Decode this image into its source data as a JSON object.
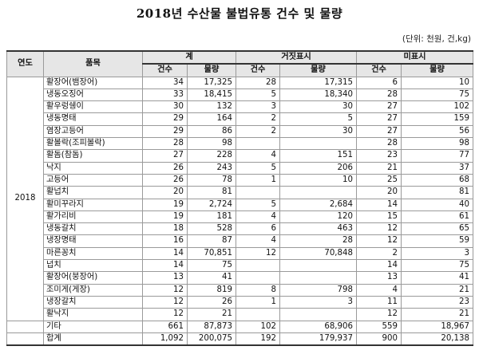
{
  "title": "2018년 수산물 불법유통 건수 및 물량",
  "unit": "(단위: 천원, 건,kg)",
  "headers": {
    "year": "연도",
    "item": "품목",
    "groups": [
      "계",
      "거짓표시",
      "미표시"
    ],
    "count": "건수",
    "amount": "물량"
  },
  "year": "2018",
  "rows": [
    {
      "item": "활장어(뱀장어)",
      "total_count": "34",
      "total_amount": "17,325",
      "false_count": "28",
      "false_amount": "17,315",
      "un_count": "6",
      "un_amount": "10"
    },
    {
      "item": "냉동오징어",
      "total_count": "33",
      "total_amount": "18,415",
      "false_count": "5",
      "false_amount": "18,340",
      "un_count": "28",
      "un_amount": "75"
    },
    {
      "item": "활우렁쉥이",
      "total_count": "30",
      "total_amount": "132",
      "false_count": "3",
      "false_amount": "30",
      "un_count": "27",
      "un_amount": "102"
    },
    {
      "item": "냉동명태",
      "total_count": "29",
      "total_amount": "164",
      "false_count": "2",
      "false_amount": "5",
      "un_count": "27",
      "un_amount": "159"
    },
    {
      "item": "염장고등어",
      "total_count": "29",
      "total_amount": "86",
      "false_count": "2",
      "false_amount": "30",
      "un_count": "27",
      "un_amount": "56"
    },
    {
      "item": "활볼락(조피볼락)",
      "total_count": "28",
      "total_amount": "98",
      "false_count": "",
      "false_amount": "",
      "un_count": "28",
      "un_amount": "98"
    },
    {
      "item": "활돔(참돔)",
      "total_count": "27",
      "total_amount": "228",
      "false_count": "4",
      "false_amount": "151",
      "un_count": "23",
      "un_amount": "77"
    },
    {
      "item": "낙지",
      "total_count": "26",
      "total_amount": "243",
      "false_count": "5",
      "false_amount": "206",
      "un_count": "21",
      "un_amount": "37"
    },
    {
      "item": "고등어",
      "total_count": "26",
      "total_amount": "78",
      "false_count": "1",
      "false_amount": "10",
      "un_count": "25",
      "un_amount": "68"
    },
    {
      "item": "활넙치",
      "total_count": "20",
      "total_amount": "81",
      "false_count": "",
      "false_amount": "",
      "un_count": "20",
      "un_amount": "81"
    },
    {
      "item": "활미꾸라지",
      "total_count": "19",
      "total_amount": "2,724",
      "false_count": "5",
      "false_amount": "2,684",
      "un_count": "14",
      "un_amount": "40"
    },
    {
      "item": "활가리비",
      "total_count": "19",
      "total_amount": "181",
      "false_count": "4",
      "false_amount": "120",
      "un_count": "15",
      "un_amount": "61"
    },
    {
      "item": "냉동갈치",
      "total_count": "18",
      "total_amount": "528",
      "false_count": "6",
      "false_amount": "463",
      "un_count": "12",
      "un_amount": "65"
    },
    {
      "item": "냉장명태",
      "total_count": "16",
      "total_amount": "87",
      "false_count": "4",
      "false_amount": "28",
      "un_count": "12",
      "un_amount": "59"
    },
    {
      "item": "마른꽁치",
      "total_count": "14",
      "total_amount": "70,851",
      "false_count": "12",
      "false_amount": "70,848",
      "un_count": "2",
      "un_amount": "3"
    },
    {
      "item": "넙치",
      "total_count": "14",
      "total_amount": "75",
      "false_count": "",
      "false_amount": "",
      "un_count": "14",
      "un_amount": "75"
    },
    {
      "item": "활장어(붕장어)",
      "total_count": "13",
      "total_amount": "41",
      "false_count": "",
      "false_amount": "",
      "un_count": "13",
      "un_amount": "41"
    },
    {
      "item": "조미게(게장)",
      "total_count": "12",
      "total_amount": "819",
      "false_count": "8",
      "false_amount": "798",
      "un_count": "4",
      "un_amount": "21"
    },
    {
      "item": "냉장갈치",
      "total_count": "12",
      "total_amount": "26",
      "false_count": "1",
      "false_amount": "3",
      "un_count": "11",
      "un_amount": "23"
    },
    {
      "item": "활낙지",
      "total_count": "12",
      "total_amount": "21",
      "false_count": "",
      "false_amount": "",
      "un_count": "12",
      "un_amount": "21"
    },
    {
      "item": "기타",
      "total_count": "661",
      "total_amount": "87,873",
      "false_count": "102",
      "false_amount": "68,906",
      "un_count": "559",
      "un_amount": "18,967"
    },
    {
      "item": "합계",
      "total_count": "1,092",
      "total_amount": "200,075",
      "false_count": "192",
      "false_amount": "179,937",
      "un_count": "900",
      "un_amount": "20,138"
    }
  ]
}
